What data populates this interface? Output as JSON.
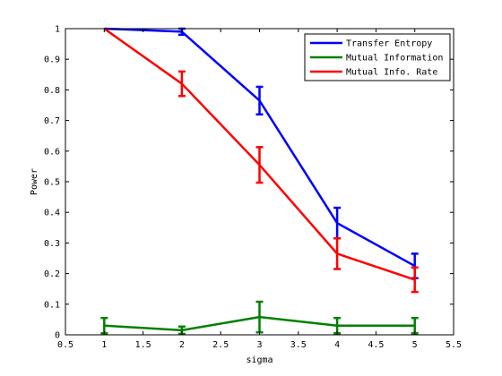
{
  "chart_data": {
    "type": "line",
    "xlabel": "sigma",
    "ylabel": "Power",
    "xlim": [
      0.5,
      5.5
    ],
    "ylim": [
      0,
      1
    ],
    "xticks": [
      "0.5",
      "1",
      "1.5",
      "2",
      "2.5",
      "3",
      "3.5",
      "4",
      "4.5",
      "5",
      "5.5"
    ],
    "yticks": [
      "0",
      "0.1",
      "0.2",
      "0.3",
      "0.4",
      "0.5",
      "0.6",
      "0.7",
      "0.8",
      "0.9",
      "1"
    ],
    "grid": false,
    "legend_position": "top-right",
    "x": [
      1,
      2,
      3,
      4,
      5
    ],
    "series": [
      {
        "name": "Transfer Entropy",
        "color": "#0000ff",
        "values": [
          1.0,
          0.99,
          0.765,
          0.365,
          0.225
        ],
        "errors": [
          0.0,
          0.01,
          0.045,
          0.05,
          0.04
        ]
      },
      {
        "name": "Mutual Information",
        "color": "#008000",
        "values": [
          0.03,
          0.015,
          0.058,
          0.03,
          0.03
        ],
        "errors": [
          0.025,
          0.012,
          0.05,
          0.025,
          0.025
        ]
      },
      {
        "name": "Mutual Info. Rate",
        "color": "#ff0000",
        "values": [
          1.0,
          0.82,
          0.555,
          0.265,
          0.18
        ],
        "errors": [
          0.0,
          0.04,
          0.058,
          0.05,
          0.04
        ]
      }
    ]
  }
}
